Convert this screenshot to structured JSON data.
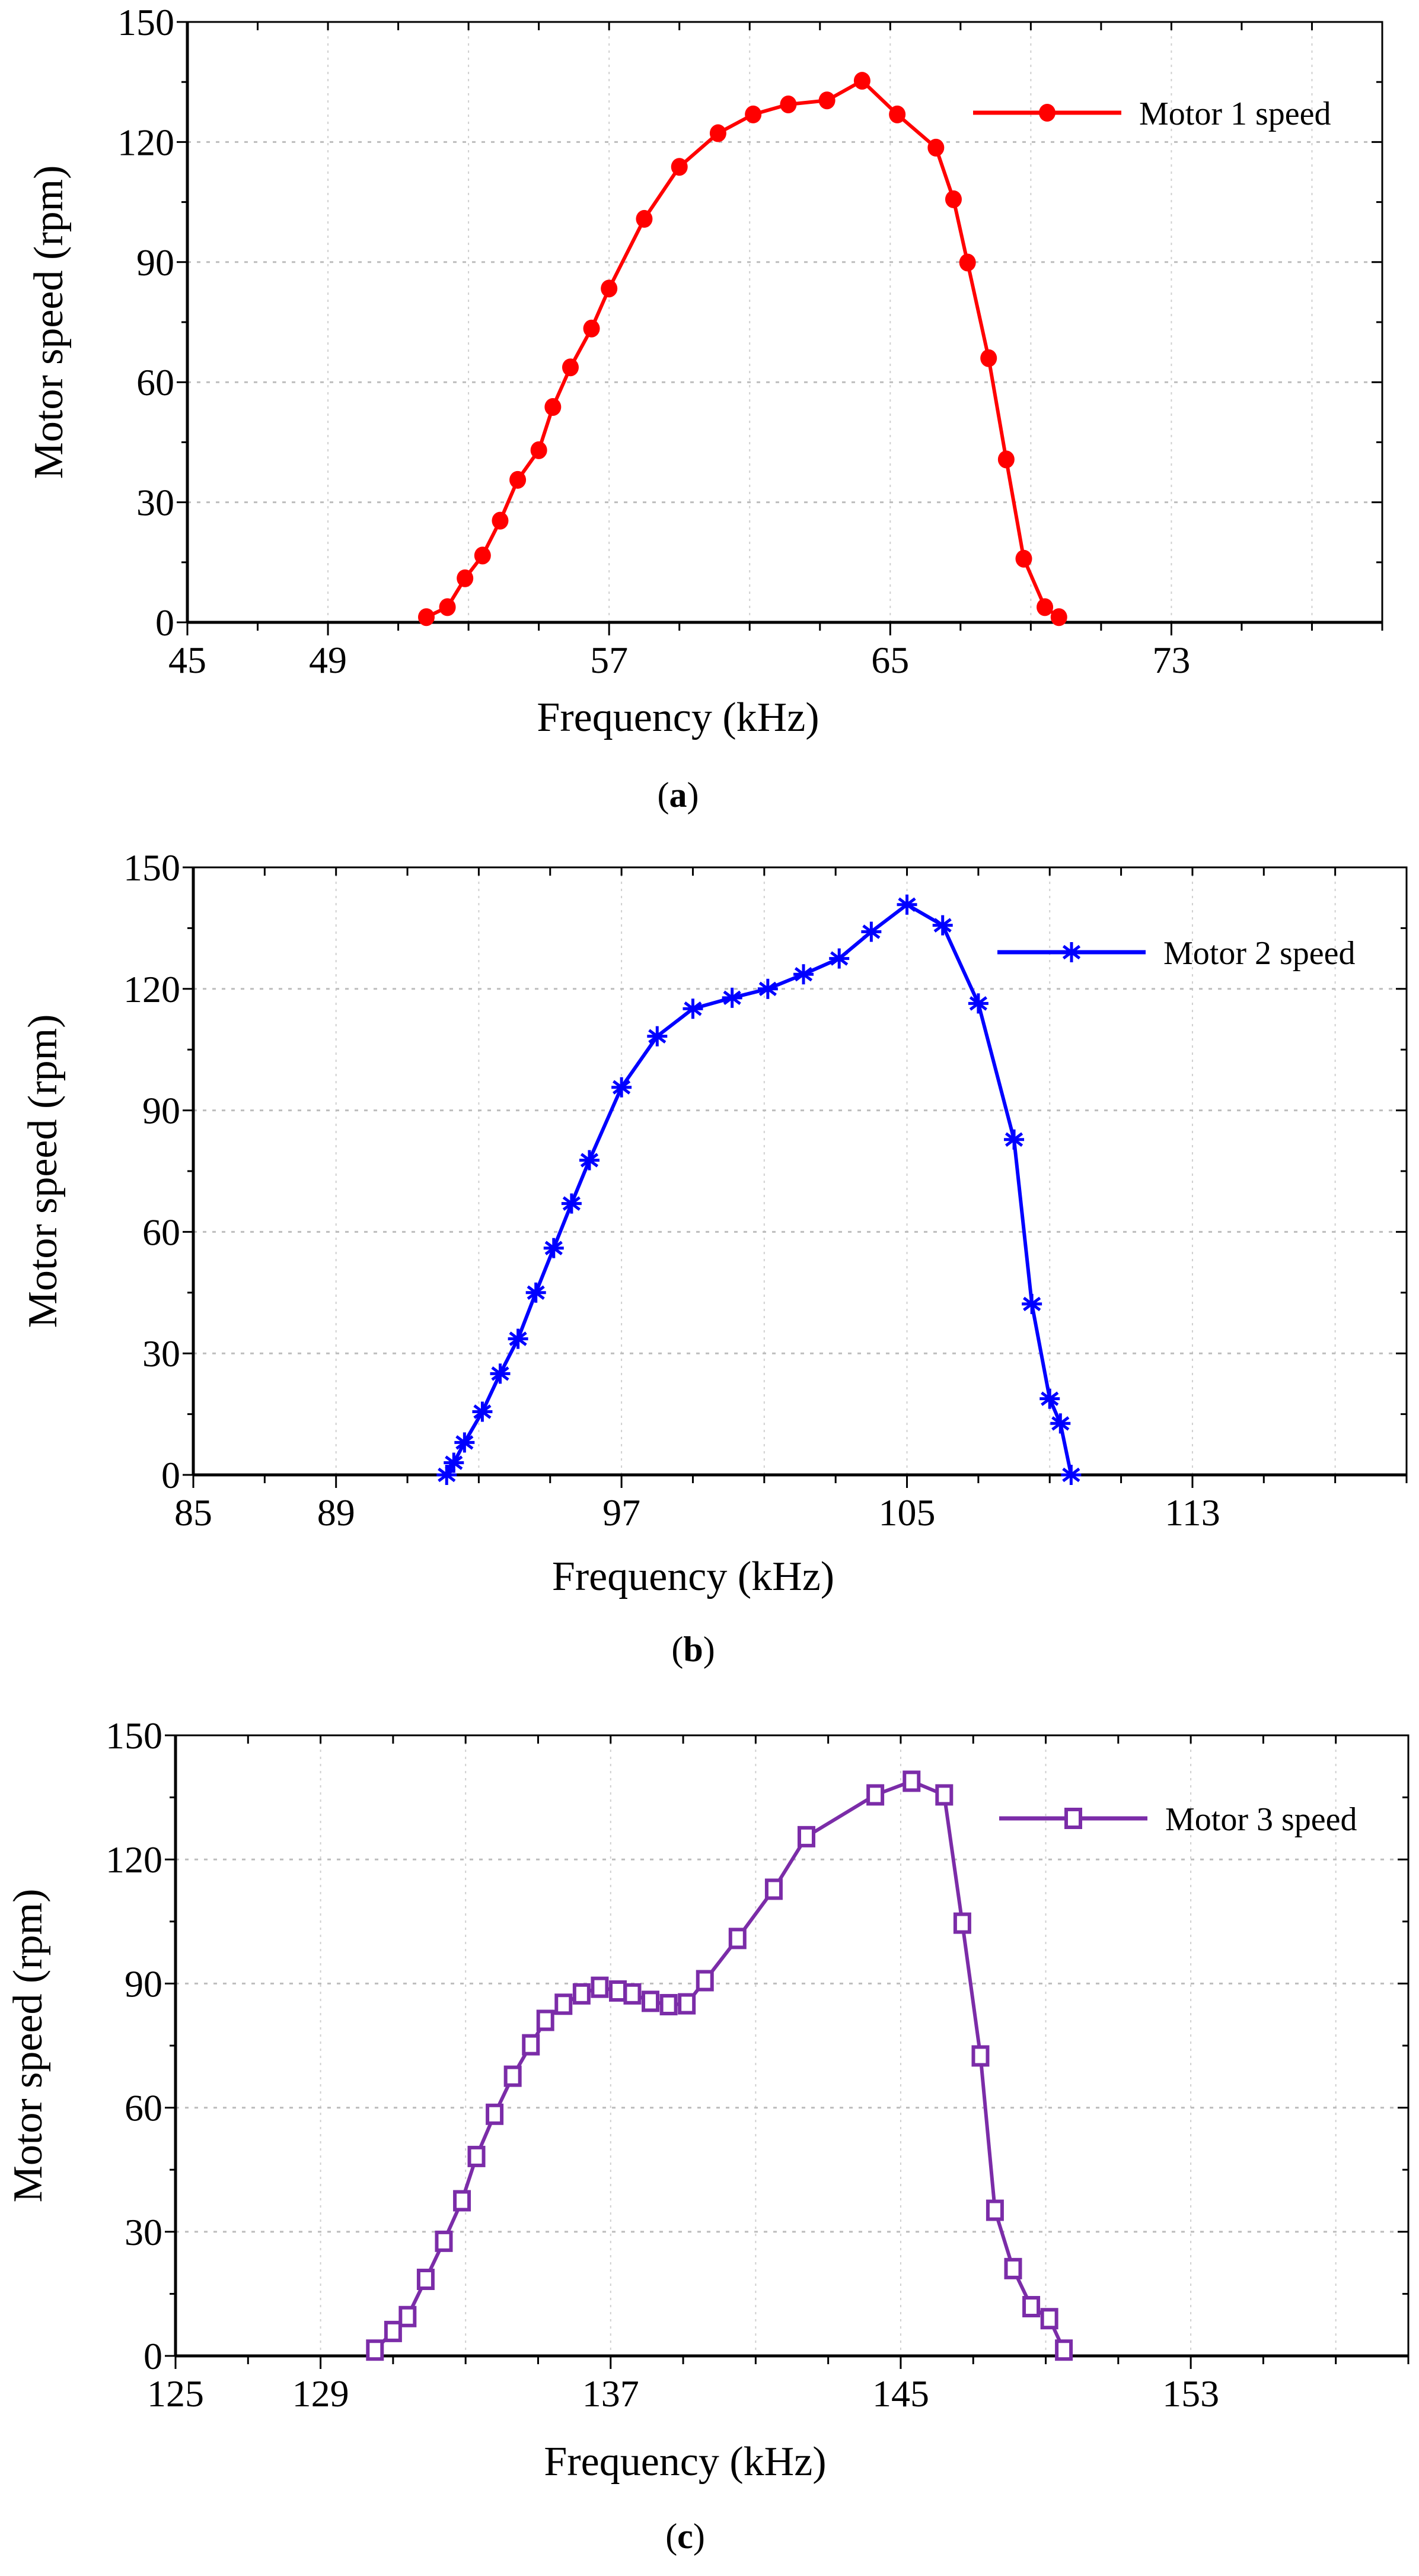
{
  "chart_data": [
    {
      "type": "line",
      "caption_letter": "a",
      "xlabel": "Frequency (kHz)",
      "ylabel": "Motor speed (rpm)",
      "xlim": [
        45,
        79
      ],
      "ylim": [
        0,
        150
      ],
      "xticks": [
        45,
        49,
        57,
        65,
        73
      ],
      "yticks": [
        0,
        30,
        60,
        90,
        120,
        150
      ],
      "grid": true,
      "legend_position": "top-right",
      "series": [
        {
          "name": "Motor 1 speed",
          "color": "#ff0000",
          "marker": "filled-circle",
          "x": [
            51.8,
            52.4,
            52.9,
            53.4,
            53.9,
            54.4,
            55.0,
            55.4,
            55.9,
            56.5,
            57.0,
            58.0,
            59.0,
            60.1,
            61.1,
            62.1,
            63.2,
            64.2,
            65.2,
            66.3,
            66.8,
            67.2,
            67.8,
            68.3,
            68.8,
            69.4,
            69.8
          ],
          "y": [
            1.3,
            3.8,
            11,
            16.7,
            25.4,
            35.6,
            43,
            53.8,
            63.7,
            73.4,
            83.4,
            100.8,
            113.8,
            122.2,
            126.9,
            129.4,
            130.4,
            135.3,
            126.9,
            118.6,
            105.7,
            89.9,
            66,
            40.7,
            15.9,
            3.8,
            1.3
          ]
        }
      ]
    },
    {
      "type": "line",
      "caption_letter": "b",
      "xlabel": "Frequency (kHz)",
      "ylabel": "Motor speed (rpm)",
      "xlim": [
        85,
        119
      ],
      "ylim": [
        0,
        150
      ],
      "xticks": [
        85,
        89,
        97,
        105,
        113
      ],
      "yticks": [
        0,
        30,
        60,
        90,
        120,
        150
      ],
      "grid": true,
      "legend_position": "top-right",
      "series": [
        {
          "name": "Motor 2 speed",
          "color": "#0000ff",
          "marker": "asterisk",
          "x": [
            92.1,
            92.3,
            92.6,
            93.1,
            93.6,
            94.1,
            94.6,
            95.1,
            95.6,
            96.1,
            97.0,
            98.0,
            99.0,
            100.1,
            101.1,
            102.1,
            103.1,
            104.0,
            105.0,
            106.0,
            107.0,
            108.0,
            108.5,
            109.0,
            109.3,
            109.6
          ],
          "y": [
            0,
            3,
            8,
            15.6,
            25,
            33.6,
            45,
            56,
            67,
            77.7,
            95.7,
            108.3,
            115.1,
            117.8,
            120,
            123.6,
            127.5,
            134.1,
            140.8,
            135.7,
            116.4,
            82.8,
            42.2,
            18.8,
            12.7,
            0
          ]
        }
      ]
    },
    {
      "type": "line",
      "caption_letter": "c",
      "xlabel": "Frequency (kHz)",
      "ylabel": "Motor speed (rpm)",
      "xlim": [
        125,
        159
      ],
      "ylim": [
        0,
        150
      ],
      "xticks": [
        125,
        129,
        137,
        145,
        153
      ],
      "yticks": [
        0,
        30,
        60,
        90,
        120,
        150
      ],
      "grid": true,
      "legend_position": "top-right",
      "series": [
        {
          "name": "Motor 3 speed",
          "color": "#7b2ca8",
          "marker": "open-square",
          "x": [
            130.5,
            131.0,
            131.4,
            131.9,
            132.4,
            132.9,
            133.3,
            133.8,
            134.3,
            134.8,
            135.2,
            135.7,
            136.2,
            136.7,
            137.2,
            137.6,
            138.1,
            138.6,
            139.1,
            139.6,
            140.5,
            141.5,
            142.4,
            144.3,
            145.3,
            146.2,
            146.7,
            147.2,
            147.6,
            148.1,
            148.6,
            149.1,
            149.5
          ],
          "y": [
            1.4,
            5.9,
            9.5,
            18.5,
            27.7,
            37.5,
            48.2,
            58.4,
            67.6,
            75.2,
            81.1,
            85,
            87.5,
            89.1,
            88.2,
            87.5,
            85.7,
            84.9,
            85.1,
            90.7,
            100.9,
            112.8,
            125.5,
            135.6,
            138.9,
            135.6,
            104.6,
            72.5,
            35.2,
            21.1,
            11.9,
            9,
            1.4
          ]
        }
      ]
    }
  ]
}
